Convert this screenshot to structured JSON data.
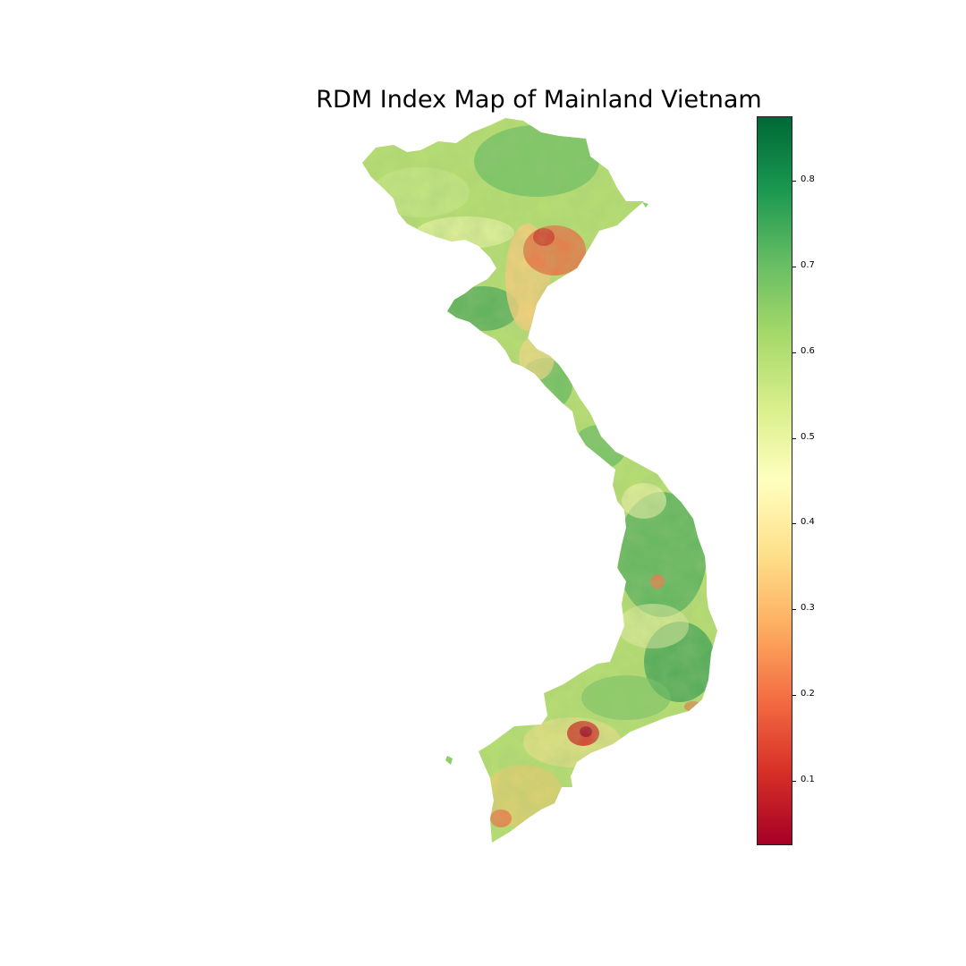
{
  "title": "RDM Index Map of Mainland Vietnam",
  "colorbar": {
    "min": 0.025,
    "max": 0.875,
    "colormap": "RdYlGn",
    "colors": [
      "#a50026",
      "#d73027",
      "#f46d43",
      "#fdae61",
      "#fee08b",
      "#ffffbf",
      "#d9ef8b",
      "#a6d96a",
      "#66bd63",
      "#1a9850",
      "#006837"
    ],
    "ticks": [
      "0.1",
      "0.2",
      "0.3",
      "0.4",
      "0.5",
      "0.6",
      "0.7",
      "0.8"
    ]
  }
}
